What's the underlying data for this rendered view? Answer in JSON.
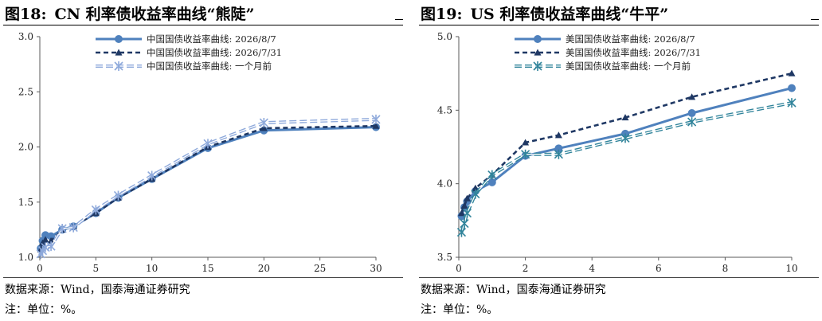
{
  "left": {
    "title_num": "图18:",
    "title_text": "CN 利率债收益率曲线“熊陡”",
    "source": "数据来源：Wind，国泰海通证券研究",
    "note": "注：单位：%。"
  },
  "right": {
    "title_num": "图19:",
    "title_text": "US 利率债收益率曲线“牛平”",
    "source": "数据来源：Wind，国泰海通证券研究",
    "note": "注：单位：%。"
  },
  "chart_data": [
    {
      "type": "line",
      "xlim": [
        0,
        30
      ],
      "ylim": [
        1.0,
        3.0
      ],
      "xticks": [
        0,
        5,
        10,
        15,
        20,
        25,
        30
      ],
      "yticks": [
        "1.0",
        "1.5",
        "2.0",
        "2.5",
        "3.0"
      ],
      "grid": false,
      "legend_position": "top-left",
      "series": [
        {
          "name": "中国国债收益率曲线: 2026/8/7",
          "color": "#4f81bd",
          "style": "solid",
          "marker": "circle",
          "x": [
            0.083,
            0.25,
            0.5,
            1,
            2,
            3,
            5,
            7,
            10,
            15,
            20,
            30
          ],
          "y": [
            1.08,
            1.15,
            1.2,
            1.19,
            1.25,
            1.28,
            1.4,
            1.54,
            1.71,
            1.99,
            2.15,
            2.18
          ]
        },
        {
          "name": "中国国债收益率曲线: 2026/7/31",
          "color": "#1f3864",
          "style": "dashed",
          "marker": "triangle",
          "x": [
            0.083,
            0.25,
            0.5,
            1,
            2,
            3,
            5,
            7,
            10,
            15,
            20,
            30
          ],
          "y": [
            1.07,
            1.13,
            1.16,
            1.15,
            1.25,
            1.28,
            1.4,
            1.54,
            1.71,
            2.0,
            2.17,
            2.19
          ]
        },
        {
          "name": "中国国债收益率曲线: 一个月前",
          "color": "#8ea9db",
          "style": "double-dash",
          "marker": "star",
          "x": [
            0.083,
            0.25,
            0.5,
            1,
            2,
            3,
            5,
            7,
            10,
            15,
            20,
            30
          ],
          "y": [
            1.03,
            1.06,
            1.09,
            1.1,
            1.26,
            1.27,
            1.43,
            1.56,
            1.74,
            2.03,
            2.22,
            2.25
          ]
        }
      ]
    },
    {
      "type": "line",
      "xlim": [
        0,
        10
      ],
      "ylim": [
        3.5,
        5.0
      ],
      "xticks": [
        0,
        2,
        4,
        6,
        8,
        10
      ],
      "yticks": [
        "3.5",
        "4.0",
        "4.5",
        "5.0"
      ],
      "grid": false,
      "legend_position": "top-left",
      "series": [
        {
          "name": "美国国债收益率曲线: 2026/8/7",
          "color": "#4f81bd",
          "style": "solid",
          "marker": "circle",
          "x": [
            0.083,
            0.167,
            0.25,
            0.5,
            1,
            2,
            3,
            5,
            7,
            10
          ],
          "y": [
            3.78,
            3.84,
            3.88,
            3.95,
            4.01,
            4.19,
            4.24,
            4.34,
            4.48,
            4.65
          ]
        },
        {
          "name": "美国国债收益率曲线: 2026/7/31",
          "color": "#1f3864",
          "style": "dashed",
          "marker": "triangle",
          "x": [
            0.083,
            0.167,
            0.25,
            0.5,
            1,
            2,
            3,
            5,
            7,
            10
          ],
          "y": [
            3.8,
            3.85,
            3.9,
            3.97,
            4.06,
            4.28,
            4.33,
            4.45,
            4.59,
            4.75
          ]
        },
        {
          "name": "美国国债收益率曲线: 一个月前",
          "color": "#31849b",
          "style": "double-dash",
          "marker": "star",
          "x": [
            0.083,
            0.167,
            0.25,
            0.5,
            1,
            2,
            3,
            5,
            7,
            10
          ],
          "y": [
            3.67,
            3.73,
            3.8,
            3.93,
            4.06,
            4.2,
            4.2,
            4.31,
            4.42,
            4.55
          ]
        }
      ]
    }
  ]
}
